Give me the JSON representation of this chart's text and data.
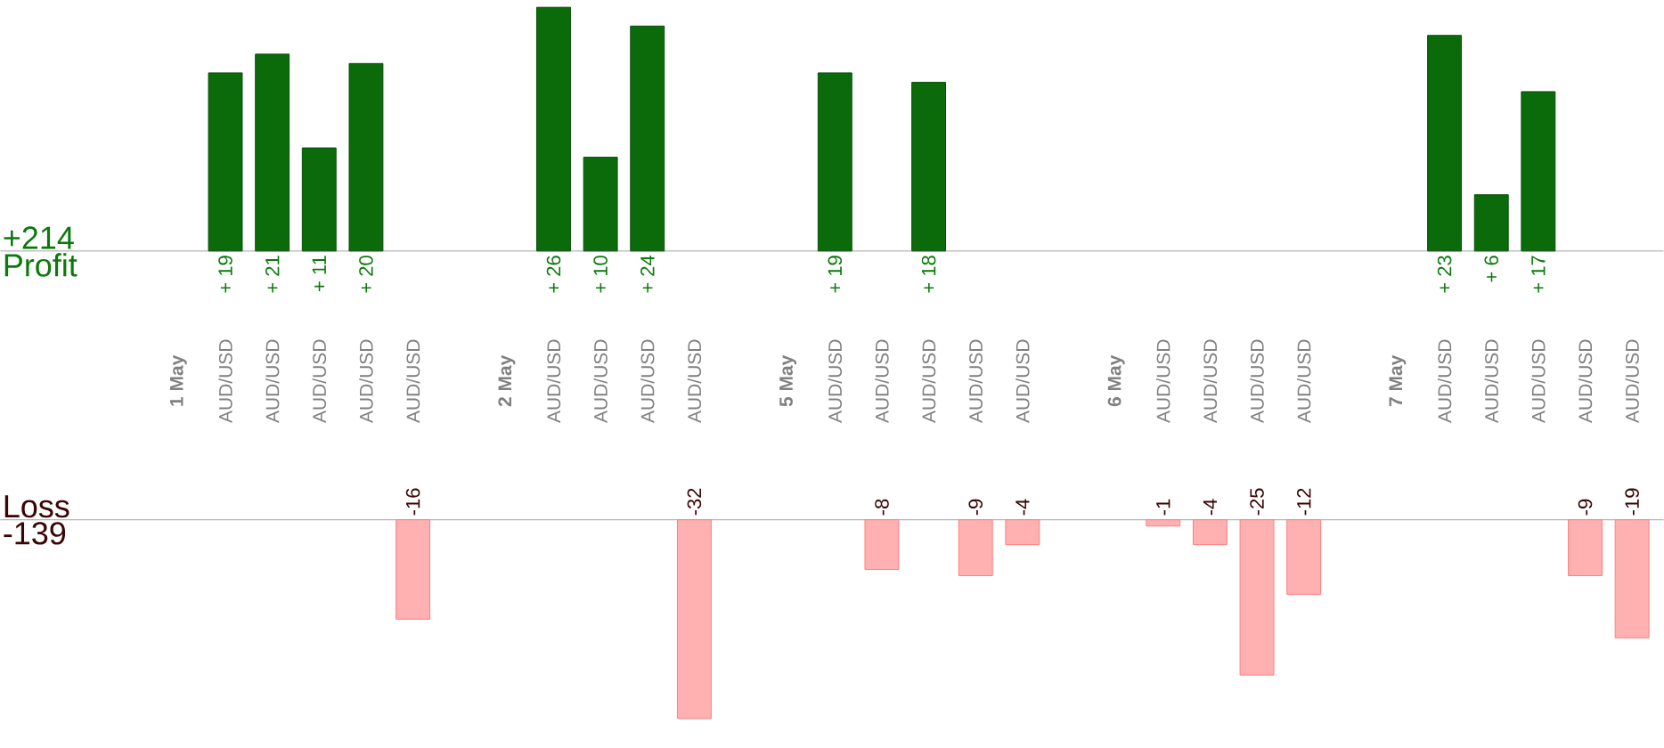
{
  "chart_data": [
    {
      "type": "bar",
      "categories": [
        null,
        "**1 May**",
        "AUD/USD",
        "AUD/USD",
        "AUD/USD",
        "AUD/USD",
        "AUD/USD",
        null,
        "**2 May**",
        "AUD/USD",
        "AUD/USD",
        "AUD/USD",
        "AUD/USD",
        null,
        "**5 May**",
        "AUD/USD",
        "AUD/USD",
        "AUD/USD",
        "AUD/USD",
        "AUD/USD",
        null,
        "**6 May**",
        "AUD/USD",
        "AUD/USD",
        "AUD/USD",
        "AUD/USD",
        null,
        "**7 May**",
        "AUD/USD",
        "AUD/USD",
        "AUD/USD",
        "AUD/USD",
        "AUD/USD"
      ],
      "values": [
        null,
        null,
        19,
        21,
        11,
        20,
        null,
        null,
        null,
        26,
        10,
        24,
        null,
        null,
        null,
        19,
        null,
        18,
        null,
        null,
        null,
        null,
        null,
        null,
        null,
        null,
        null,
        null,
        23,
        6,
        17,
        null,
        null
      ],
      "value_labels": [
        null,
        null,
        "+ 19",
        "+ 21",
        "+ 11",
        "+ 20",
        null,
        null,
        null,
        "+ 26",
        "+ 10",
        "+ 24",
        null,
        null,
        null,
        "+ 19",
        null,
        "+ 18",
        null,
        null,
        null,
        null,
        null,
        null,
        null,
        null,
        null,
        null,
        "+ 23",
        "+ 6",
        "+ 17",
        null,
        null
      ],
      "color": "#0b6b0b",
      "tick_labels": "x",
      "annotations": [
        "+214",
        "Profit"
      ]
    },
    {
      "type": "bar",
      "categories": [
        null,
        null,
        null,
        null,
        null,
        null,
        null,
        null,
        null,
        null,
        null,
        null,
        null,
        null,
        null,
        null,
        null,
        null,
        null,
        null,
        null,
        null,
        null,
        null,
        null,
        null,
        null,
        null,
        null,
        null,
        null,
        null,
        null
      ],
      "values": [
        null,
        null,
        null,
        null,
        null,
        null,
        -16,
        null,
        null,
        null,
        null,
        null,
        -32,
        null,
        null,
        null,
        -8,
        null,
        -9,
        -4,
        null,
        null,
        -1,
        -4,
        -25,
        -12,
        null,
        null,
        null,
        null,
        null,
        -9,
        -19
      ],
      "data_labels": true,
      "color": "#ffb0b0",
      "tick_labels": false,
      "annotations": [
        "Loss",
        "-139"
      ]
    }
  ]
}
